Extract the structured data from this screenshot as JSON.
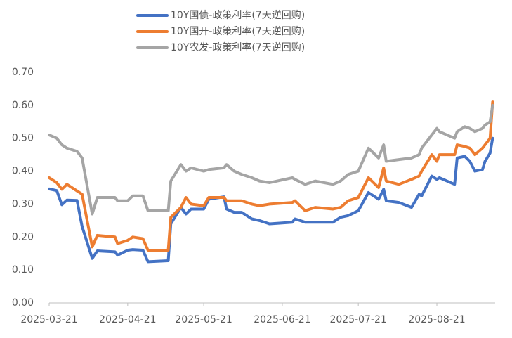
{
  "chart_data": {
    "type": "line",
    "x": [
      "2025-03-21",
      "2025-03-24",
      "2025-03-26",
      "2025-03-28",
      "2025-04-01",
      "2025-04-03",
      "2025-04-07",
      "2025-04-09",
      "2025-04-16",
      "2025-04-17",
      "2025-04-21",
      "2025-04-23",
      "2025-04-27",
      "2025-04-29",
      "2025-05-07",
      "2025-05-08",
      "2025-05-12",
      "2025-05-14",
      "2025-05-16",
      "2025-05-21",
      "2025-05-23",
      "2025-05-29",
      "2025-05-30",
      "2025-06-02",
      "2025-06-05",
      "2025-06-09",
      "2025-06-12",
      "2025-06-16",
      "2025-06-25",
      "2025-06-26",
      "2025-06-30",
      "2025-07-04",
      "2025-07-11",
      "2025-07-14",
      "2025-07-17",
      "2025-07-21",
      "2025-07-25",
      "2025-07-29",
      "2025-07-31",
      "2025-08-01",
      "2025-08-06",
      "2025-08-11",
      "2025-08-14",
      "2025-08-15",
      "2025-08-19",
      "2025-08-21",
      "2025-08-22",
      "2025-08-28",
      "2025-08-29",
      "2025-09-01",
      "2025-09-03",
      "2025-09-05",
      "2025-09-08",
      "2025-09-09",
      "2025-09-11",
      "2025-09-12"
    ],
    "series": [
      {
        "name": "10Y国债-政策利率(7天逆回购)",
        "color": "#4472c4",
        "values": [
          0.346,
          0.341,
          0.298,
          0.312,
          0.311,
          0.232,
          0.135,
          0.158,
          0.155,
          0.145,
          0.16,
          0.162,
          0.16,
          0.125,
          0.128,
          0.24,
          0.29,
          0.27,
          0.285,
          0.285,
          0.315,
          0.322,
          0.285,
          0.275,
          0.275,
          0.255,
          0.25,
          0.24,
          0.245,
          0.255,
          0.245,
          0.245,
          0.245,
          0.26,
          0.265,
          0.28,
          0.335,
          0.315,
          0.345,
          0.31,
          0.305,
          0.29,
          0.33,
          0.325,
          0.385,
          0.375,
          0.38,
          0.36,
          0.44,
          0.445,
          0.43,
          0.4,
          0.405,
          0.43,
          0.455,
          0.5
        ]
      },
      {
        "name": "10Y国开-政策利率(7天逆回购)",
        "color": "#ed7d31",
        "values": [
          0.38,
          0.365,
          0.345,
          0.36,
          0.34,
          0.33,
          0.17,
          0.205,
          0.2,
          0.18,
          0.19,
          0.2,
          0.195,
          0.16,
          0.16,
          0.26,
          0.29,
          0.32,
          0.3,
          0.295,
          0.32,
          0.32,
          0.31,
          0.31,
          0.31,
          0.3,
          0.295,
          0.3,
          0.305,
          0.31,
          0.28,
          0.29,
          0.285,
          0.29,
          0.31,
          0.32,
          0.38,
          0.35,
          0.41,
          0.37,
          0.36,
          0.375,
          0.385,
          0.4,
          0.45,
          0.43,
          0.45,
          0.45,
          0.48,
          0.475,
          0.47,
          0.45,
          0.47,
          0.48,
          0.5,
          0.61
        ]
      },
      {
        "name": "10Y农发-政策利率(7天逆回购)",
        "color": "#a5a5a5",
        "values": [
          0.51,
          0.5,
          0.48,
          0.47,
          0.46,
          0.44,
          0.27,
          0.32,
          0.32,
          0.31,
          0.31,
          0.325,
          0.325,
          0.28,
          0.28,
          0.37,
          0.42,
          0.4,
          0.41,
          0.4,
          0.405,
          0.41,
          0.42,
          0.4,
          0.39,
          0.38,
          0.37,
          0.365,
          0.38,
          0.375,
          0.36,
          0.37,
          0.36,
          0.37,
          0.39,
          0.4,
          0.47,
          0.44,
          0.48,
          0.43,
          0.435,
          0.44,
          0.45,
          0.47,
          0.51,
          0.53,
          0.52,
          0.5,
          0.52,
          0.535,
          0.53,
          0.52,
          0.53,
          0.54,
          0.55,
          0.6
        ]
      }
    ],
    "xlim": [
      "2025-03-21",
      "2025-09-13"
    ],
    "xticks": [
      "2025-03-21",
      "2025-04-21",
      "2025-05-21",
      "2025-06-21",
      "2025-07-21",
      "2025-08-21"
    ],
    "ylim": [
      0,
      0.7
    ],
    "yticks": [
      {
        "value": 0,
        "label": "0.00"
      },
      {
        "value": 0.1,
        "label": "0.10"
      },
      {
        "value": 0.2,
        "label": "0.20"
      },
      {
        "value": 0.3,
        "label": "0.30"
      },
      {
        "value": 0.4,
        "label": "0.40"
      },
      {
        "value": 0.5,
        "label": "0.50"
      },
      {
        "value": 0.6,
        "label": "0.60"
      },
      {
        "value": 0.7,
        "label": "0.70"
      }
    ],
    "grid": false,
    "legend": "top"
  }
}
